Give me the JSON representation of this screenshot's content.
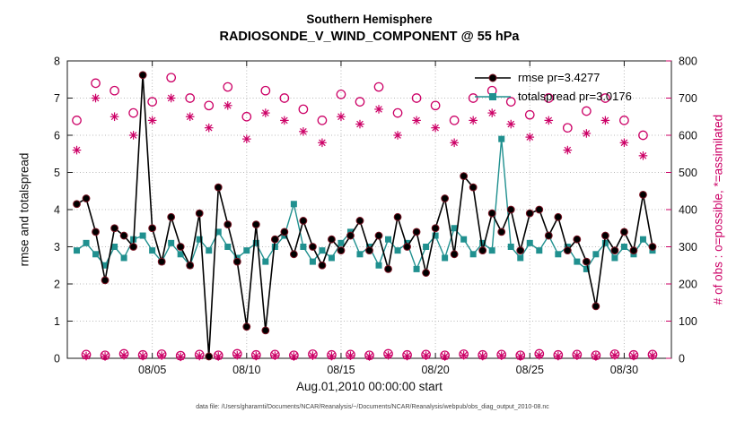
{
  "footer": "data file: /Users/gharamti/Documents/NCAR/Reanalysis/~/Documents/NCAR/Reanalysis/webpub/obs_diag_output_2010-08.nc",
  "colors": {
    "rmse": "#000000",
    "rmse_edge": "#7a1423",
    "spread": "#20908f",
    "obs": "#cc0066",
    "grid": "#b9b9b9",
    "axis": "#1a1a1a"
  },
  "chart_data": {
    "type": "line",
    "title": "Southern Hemisphere",
    "subtitle": "RADIOSONDE_V_WIND_COMPONENT @ 55 hPa",
    "xlabel": "Aug.01,2010 00:00:00 start",
    "ylabel_left": "rmse and totalspread",
    "ylabel_right": "# of obs : o=possible, *=assimilated",
    "grid": true,
    "legend_position": "top-right-inside",
    "xlim": [
      0.5,
      32.5
    ],
    "ylim_left": [
      0,
      8
    ],
    "ylim_right": [
      0,
      800
    ],
    "xticks": [
      5,
      10,
      15,
      20,
      25,
      30
    ],
    "xtick_labels": [
      "08/05",
      "08/10",
      "08/15",
      "08/20",
      "08/25",
      "08/30"
    ],
    "yticks_left": [
      0,
      1,
      2,
      3,
      4,
      5,
      6,
      7,
      8
    ],
    "yticks_right": [
      0,
      100,
      200,
      300,
      400,
      500,
      600,
      700,
      800
    ],
    "x": [
      1,
      1.5,
      2,
      2.5,
      3,
      3.5,
      4,
      4.5,
      5,
      5.5,
      6,
      6.5,
      7,
      7.5,
      8,
      8.5,
      9,
      9.5,
      10,
      10.5,
      11,
      11.5,
      12,
      12.5,
      13,
      13.5,
      14,
      14.5,
      15,
      15.5,
      16,
      16.5,
      17,
      17.5,
      18,
      18.5,
      19,
      19.5,
      20,
      20.5,
      21,
      21.5,
      22,
      22.5,
      23,
      23.5,
      24,
      24.5,
      25,
      25.5,
      26,
      26.5,
      27,
      27.5,
      28,
      28.5,
      29,
      29.5,
      30,
      30.5,
      31,
      31.5
    ],
    "series": [
      {
        "id": "rmse-series",
        "name": "rmse pr=3.4277",
        "axis": "left",
        "line": true,
        "width": 1.6,
        "marker": "filled-circle",
        "color": "#000000",
        "edge_color": "#7a1423",
        "z": 3,
        "values": [
          4.15,
          4.3,
          3.4,
          2.1,
          3.5,
          3.3,
          3.0,
          7.62,
          3.5,
          2.6,
          3.8,
          3.0,
          2.5,
          3.9,
          0.05,
          4.6,
          3.6,
          2.6,
          0.85,
          3.6,
          0.75,
          3.2,
          3.4,
          2.8,
          3.7,
          3.0,
          2.5,
          3.2,
          2.9,
          3.3,
          3.7,
          2.9,
          3.3,
          2.4,
          3.8,
          3.0,
          3.4,
          2.3,
          3.5,
          4.3,
          2.8,
          4.9,
          4.6,
          2.9,
          3.9,
          3.4,
          4.0,
          2.9,
          3.9,
          4.0,
          3.3,
          3.8,
          2.9,
          3.2,
          2.6,
          1.4,
          3.3,
          2.9,
          3.4,
          2.9,
          4.4,
          3.0
        ]
      },
      {
        "id": "totalspread-series",
        "name": "totalspread pr=3.0176",
        "axis": "left",
        "line": true,
        "width": 1.4,
        "marker": "filled-square",
        "color": "#20908f",
        "z": 2,
        "values": [
          2.9,
          3.1,
          2.8,
          2.5,
          3.0,
          2.7,
          3.2,
          3.3,
          2.9,
          2.6,
          3.1,
          2.8,
          2.5,
          3.2,
          2.9,
          3.4,
          3.0,
          2.7,
          2.9,
          3.1,
          2.6,
          3.0,
          3.3,
          4.15,
          3.0,
          2.6,
          2.9,
          2.7,
          3.1,
          3.4,
          2.8,
          3.0,
          2.5,
          3.2,
          2.9,
          3.1,
          2.4,
          3.0,
          3.3,
          2.7,
          3.5,
          3.2,
          2.8,
          3.1,
          2.9,
          5.9,
          3.0,
          2.7,
          3.1,
          2.9,
          3.3,
          2.8,
          3.0,
          2.6,
          2.4,
          2.8,
          3.1,
          2.7,
          3.0,
          2.8,
          3.2,
          2.9
        ]
      },
      {
        "id": "possible-obs-series",
        "name": "# of obs possible",
        "axis": "right",
        "line": false,
        "marker": "open-circle",
        "color": "#cc0066",
        "z": 0,
        "values": [
          640,
          10,
          740,
          8,
          720,
          12,
          660,
          9,
          690,
          11,
          755,
          7,
          700,
          10,
          680,
          8,
          730,
          12,
          650,
          9,
          720,
          10,
          700,
          8,
          670,
          11,
          640,
          9,
          710,
          10,
          690,
          8,
          730,
          12,
          660,
          9,
          700,
          10,
          680,
          8,
          640,
          11,
          700,
          9,
          720,
          10,
          690,
          8,
          655,
          12,
          700,
          9,
          620,
          10,
          665,
          8,
          700,
          11,
          640,
          9,
          600,
          10
        ]
      },
      {
        "id": "assimilated-obs-series",
        "name": "# of obs assimilated",
        "axis": "right",
        "line": false,
        "marker": "asterisk",
        "color": "#cc0066",
        "z": 1,
        "values": [
          560,
          6,
          700,
          5,
          650,
          8,
          600,
          6,
          640,
          7,
          700,
          4,
          650,
          6,
          620,
          5,
          680,
          8,
          590,
          6,
          660,
          7,
          640,
          5,
          610,
          7,
          580,
          6,
          650,
          7,
          630,
          5,
          670,
          8,
          600,
          6,
          640,
          7,
          620,
          5,
          580,
          8,
          640,
          6,
          660,
          7,
          630,
          5,
          595,
          8,
          640,
          6,
          560,
          7,
          605,
          5,
          640,
          8,
          580,
          6,
          545,
          7
        ]
      }
    ]
  }
}
